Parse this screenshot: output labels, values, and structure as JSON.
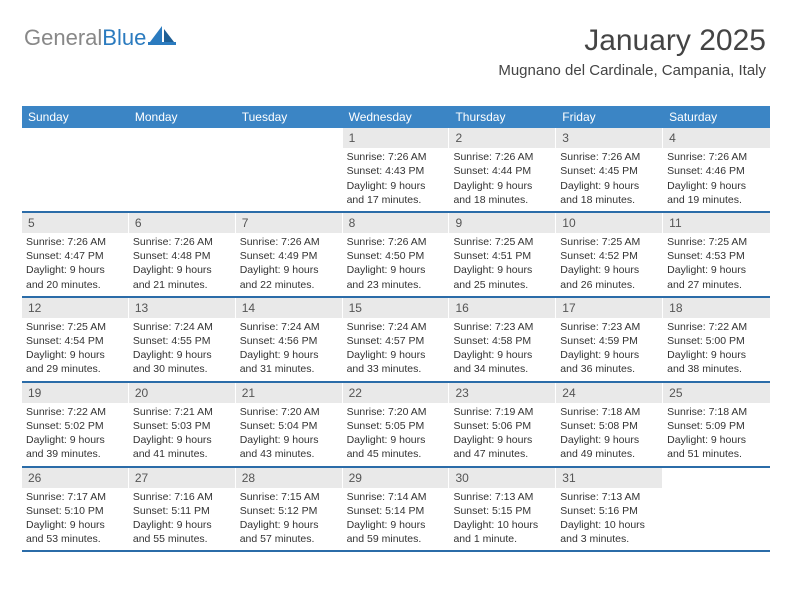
{
  "brand": {
    "part1": "General",
    "part2": "Blue"
  },
  "header": {
    "title": "January 2025",
    "subtitle": "Mugnano del Cardinale, Campania, Italy"
  },
  "colors": {
    "header_bg": "#3b85c5",
    "week_border": "#2b6ca8",
    "daynum_bg": "#e9e9e9"
  },
  "dow": [
    "Sunday",
    "Monday",
    "Tuesday",
    "Wednesday",
    "Thursday",
    "Friday",
    "Saturday"
  ],
  "weeks": [
    [
      {
        "n": "",
        "sr": "",
        "ss": "",
        "dl": ""
      },
      {
        "n": "",
        "sr": "",
        "ss": "",
        "dl": ""
      },
      {
        "n": "",
        "sr": "",
        "ss": "",
        "dl": ""
      },
      {
        "n": "1",
        "sr": "Sunrise: 7:26 AM",
        "ss": "Sunset: 4:43 PM",
        "dl": "Daylight: 9 hours and 17 minutes."
      },
      {
        "n": "2",
        "sr": "Sunrise: 7:26 AM",
        "ss": "Sunset: 4:44 PM",
        "dl": "Daylight: 9 hours and 18 minutes."
      },
      {
        "n": "3",
        "sr": "Sunrise: 7:26 AM",
        "ss": "Sunset: 4:45 PM",
        "dl": "Daylight: 9 hours and 18 minutes."
      },
      {
        "n": "4",
        "sr": "Sunrise: 7:26 AM",
        "ss": "Sunset: 4:46 PM",
        "dl": "Daylight: 9 hours and 19 minutes."
      }
    ],
    [
      {
        "n": "5",
        "sr": "Sunrise: 7:26 AM",
        "ss": "Sunset: 4:47 PM",
        "dl": "Daylight: 9 hours and 20 minutes."
      },
      {
        "n": "6",
        "sr": "Sunrise: 7:26 AM",
        "ss": "Sunset: 4:48 PM",
        "dl": "Daylight: 9 hours and 21 minutes."
      },
      {
        "n": "7",
        "sr": "Sunrise: 7:26 AM",
        "ss": "Sunset: 4:49 PM",
        "dl": "Daylight: 9 hours and 22 minutes."
      },
      {
        "n": "8",
        "sr": "Sunrise: 7:26 AM",
        "ss": "Sunset: 4:50 PM",
        "dl": "Daylight: 9 hours and 23 minutes."
      },
      {
        "n": "9",
        "sr": "Sunrise: 7:25 AM",
        "ss": "Sunset: 4:51 PM",
        "dl": "Daylight: 9 hours and 25 minutes."
      },
      {
        "n": "10",
        "sr": "Sunrise: 7:25 AM",
        "ss": "Sunset: 4:52 PM",
        "dl": "Daylight: 9 hours and 26 minutes."
      },
      {
        "n": "11",
        "sr": "Sunrise: 7:25 AM",
        "ss": "Sunset: 4:53 PM",
        "dl": "Daylight: 9 hours and 27 minutes."
      }
    ],
    [
      {
        "n": "12",
        "sr": "Sunrise: 7:25 AM",
        "ss": "Sunset: 4:54 PM",
        "dl": "Daylight: 9 hours and 29 minutes."
      },
      {
        "n": "13",
        "sr": "Sunrise: 7:24 AM",
        "ss": "Sunset: 4:55 PM",
        "dl": "Daylight: 9 hours and 30 minutes."
      },
      {
        "n": "14",
        "sr": "Sunrise: 7:24 AM",
        "ss": "Sunset: 4:56 PM",
        "dl": "Daylight: 9 hours and 31 minutes."
      },
      {
        "n": "15",
        "sr": "Sunrise: 7:24 AM",
        "ss": "Sunset: 4:57 PM",
        "dl": "Daylight: 9 hours and 33 minutes."
      },
      {
        "n": "16",
        "sr": "Sunrise: 7:23 AM",
        "ss": "Sunset: 4:58 PM",
        "dl": "Daylight: 9 hours and 34 minutes."
      },
      {
        "n": "17",
        "sr": "Sunrise: 7:23 AM",
        "ss": "Sunset: 4:59 PM",
        "dl": "Daylight: 9 hours and 36 minutes."
      },
      {
        "n": "18",
        "sr": "Sunrise: 7:22 AM",
        "ss": "Sunset: 5:00 PM",
        "dl": "Daylight: 9 hours and 38 minutes."
      }
    ],
    [
      {
        "n": "19",
        "sr": "Sunrise: 7:22 AM",
        "ss": "Sunset: 5:02 PM",
        "dl": "Daylight: 9 hours and 39 minutes."
      },
      {
        "n": "20",
        "sr": "Sunrise: 7:21 AM",
        "ss": "Sunset: 5:03 PM",
        "dl": "Daylight: 9 hours and 41 minutes."
      },
      {
        "n": "21",
        "sr": "Sunrise: 7:20 AM",
        "ss": "Sunset: 5:04 PM",
        "dl": "Daylight: 9 hours and 43 minutes."
      },
      {
        "n": "22",
        "sr": "Sunrise: 7:20 AM",
        "ss": "Sunset: 5:05 PM",
        "dl": "Daylight: 9 hours and 45 minutes."
      },
      {
        "n": "23",
        "sr": "Sunrise: 7:19 AM",
        "ss": "Sunset: 5:06 PM",
        "dl": "Daylight: 9 hours and 47 minutes."
      },
      {
        "n": "24",
        "sr": "Sunrise: 7:18 AM",
        "ss": "Sunset: 5:08 PM",
        "dl": "Daylight: 9 hours and 49 minutes."
      },
      {
        "n": "25",
        "sr": "Sunrise: 7:18 AM",
        "ss": "Sunset: 5:09 PM",
        "dl": "Daylight: 9 hours and 51 minutes."
      }
    ],
    [
      {
        "n": "26",
        "sr": "Sunrise: 7:17 AM",
        "ss": "Sunset: 5:10 PM",
        "dl": "Daylight: 9 hours and 53 minutes."
      },
      {
        "n": "27",
        "sr": "Sunrise: 7:16 AM",
        "ss": "Sunset: 5:11 PM",
        "dl": "Daylight: 9 hours and 55 minutes."
      },
      {
        "n": "28",
        "sr": "Sunrise: 7:15 AM",
        "ss": "Sunset: 5:12 PM",
        "dl": "Daylight: 9 hours and 57 minutes."
      },
      {
        "n": "29",
        "sr": "Sunrise: 7:14 AM",
        "ss": "Sunset: 5:14 PM",
        "dl": "Daylight: 9 hours and 59 minutes."
      },
      {
        "n": "30",
        "sr": "Sunrise: 7:13 AM",
        "ss": "Sunset: 5:15 PM",
        "dl": "Daylight: 10 hours and 1 minute."
      },
      {
        "n": "31",
        "sr": "Sunrise: 7:13 AM",
        "ss": "Sunset: 5:16 PM",
        "dl": "Daylight: 10 hours and 3 minutes."
      },
      {
        "n": "",
        "sr": "",
        "ss": "",
        "dl": ""
      }
    ]
  ]
}
